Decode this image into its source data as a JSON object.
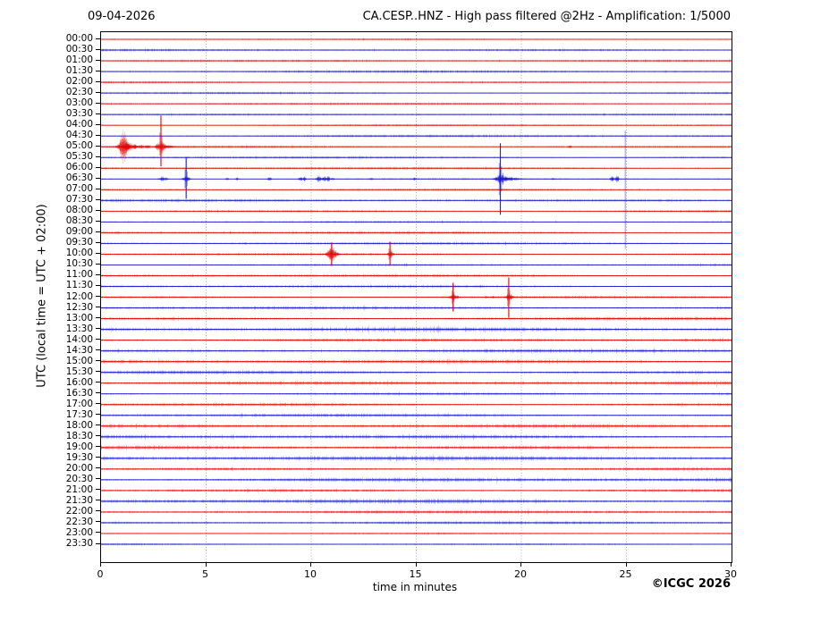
{
  "header": {
    "date": "09-04-2026",
    "station_title": "CA.CESP..HNZ - High pass filtered @2Hz - Amplification: 1/5000"
  },
  "axes": {
    "x_label": "time in minutes",
    "y_label": "UTC (local time = UTC + 02:00)"
  },
  "footer": {
    "copyright": "©ICGC 2026"
  },
  "colors": {
    "red_trace": "#e00000",
    "blue_trace": "#1414cc",
    "grid": "#7a7a7a",
    "frame": "#000000"
  },
  "chart_data": {
    "type": "line",
    "subtype": "helicorder-seismogram",
    "x_range": [
      0,
      30
    ],
    "x_ticks": [
      0,
      5,
      10,
      15,
      20,
      25,
      30
    ],
    "grid_minutes": [
      5,
      10,
      15,
      20,
      25
    ],
    "minutes_per_row": 30,
    "row_color_cycle": [
      "red",
      "blue"
    ],
    "row_labels": [
      "00:00",
      "00:30",
      "01:00",
      "01:30",
      "02:00",
      "02:30",
      "03:00",
      "03:30",
      "04:00",
      "04:30",
      "05:00",
      "05:30",
      "06:00",
      "06:30",
      "07:00",
      "07:30",
      "08:00",
      "08:30",
      "09:00",
      "09:30",
      "10:00",
      "10:30",
      "11:00",
      "11:30",
      "12:00",
      "12:30",
      "13:00",
      "13:30",
      "14:00",
      "14:30",
      "15:00",
      "15:30",
      "16:00",
      "16:30",
      "17:00",
      "17:30",
      "18:00",
      "18:30",
      "19:00",
      "19:30",
      "20:00",
      "20:30",
      "21:00",
      "21:30",
      "22:00",
      "22:30",
      "23:00",
      "23:30"
    ],
    "noise_amp": [
      0.7,
      1.1,
      1.0,
      1.1,
      1.0,
      1.2,
      1.0,
      0.9,
      1.1,
      1.2,
      1.2,
      1.3,
      1.2,
      1.0,
      1.4,
      1.3,
      1.3,
      1.2,
      1.3,
      1.1,
      1.3,
      1.1,
      1.3,
      1.3,
      1.3,
      1.3,
      1.6,
      1.9,
      1.9,
      1.6,
      1.9,
      1.7,
      1.7,
      1.5,
      1.7,
      1.5,
      1.7,
      2.0,
      1.8,
      2.0,
      1.7,
      2.0,
      1.8,
      2.0,
      1.5,
      1.3,
      1.1,
      1.1
    ],
    "events": [
      {
        "row": 10,
        "kind": "burst",
        "t": 1.05,
        "amp": 18,
        "dur": 0.3
      },
      {
        "row": 10,
        "kind": "burst",
        "t": 1.3,
        "amp": 5,
        "dur": 0.5
      },
      {
        "row": 10,
        "kind": "burst",
        "t": 1.62,
        "amp": 3.5,
        "dur": 0.15
      },
      {
        "row": 10,
        "kind": "burst",
        "t": 1.9,
        "amp": 2.5,
        "dur": 0.2
      },
      {
        "row": 10,
        "kind": "burst",
        "t": 2.2,
        "amp": 2,
        "dur": 0.3
      },
      {
        "row": 10,
        "kind": "spike",
        "t": 2.85,
        "up": 35,
        "down": 22
      },
      {
        "row": 10,
        "kind": "burst",
        "t": 2.85,
        "amp": 7,
        "dur": 0.35
      },
      {
        "row": 10,
        "kind": "burst",
        "t": 3.3,
        "amp": 1.8,
        "dur": 0.4
      },
      {
        "row": 10,
        "kind": "burst",
        "t": 22.3,
        "amp": 2.2,
        "dur": 0.12
      },
      {
        "row": 13,
        "kind": "burst",
        "t": 2.95,
        "amp": 3,
        "dur": 0.3
      },
      {
        "row": 13,
        "kind": "spike",
        "t": 4.05,
        "up": 24,
        "down": 22
      },
      {
        "row": 13,
        "kind": "burst",
        "t": 4.05,
        "amp": 4,
        "dur": 0.25
      },
      {
        "row": 13,
        "kind": "burst",
        "t": 6.0,
        "amp": 2.2,
        "dur": 0.12
      },
      {
        "row": 13,
        "kind": "burst",
        "t": 6.45,
        "amp": 1.8,
        "dur": 0.1
      },
      {
        "row": 13,
        "kind": "burst",
        "t": 8.0,
        "amp": 2.2,
        "dur": 0.15
      },
      {
        "row": 13,
        "kind": "burst",
        "t": 9.5,
        "amp": 2.8,
        "dur": 0.15
      },
      {
        "row": 13,
        "kind": "burst",
        "t": 9.68,
        "amp": 2.8,
        "dur": 0.12
      },
      {
        "row": 13,
        "kind": "burst",
        "t": 10.35,
        "amp": 3.8,
        "dur": 0.2
      },
      {
        "row": 13,
        "kind": "burst",
        "t": 10.62,
        "amp": 3.2,
        "dur": 0.16
      },
      {
        "row": 13,
        "kind": "burst",
        "t": 10.8,
        "amp": 3.2,
        "dur": 0.16
      },
      {
        "row": 13,
        "kind": "burst",
        "t": 11.02,
        "amp": 2,
        "dur": 0.1
      },
      {
        "row": 13,
        "kind": "burst",
        "t": 12.85,
        "amp": 1.6,
        "dur": 0.1
      },
      {
        "row": 13,
        "kind": "burst",
        "t": 14.9,
        "amp": 1.8,
        "dur": 0.12
      },
      {
        "row": 13,
        "kind": "spike",
        "t": 19.0,
        "up": 40,
        "down": 40
      },
      {
        "row": 13,
        "kind": "burst",
        "t": 19.05,
        "amp": 7,
        "dur": 0.4
      },
      {
        "row": 13,
        "kind": "burst",
        "t": 19.5,
        "amp": 2.5,
        "dur": 0.6
      },
      {
        "row": 13,
        "kind": "burst",
        "t": 21.5,
        "amp": 1.5,
        "dur": 0.1
      },
      {
        "row": 13,
        "kind": "burst",
        "t": 24.3,
        "amp": 3.5,
        "dur": 0.15
      },
      {
        "row": 13,
        "kind": "burst",
        "t": 24.55,
        "amp": 4.5,
        "dur": 0.13
      },
      {
        "row": 13,
        "kind": "streak",
        "t": 24.95,
        "row_from": 9,
        "row_to": 19
      },
      {
        "row": 20,
        "kind": "burst",
        "t": 11.0,
        "amp": 9,
        "dur": 0.35
      },
      {
        "row": 20,
        "kind": "spike",
        "t": 10.97,
        "up": 13,
        "down": 13
      },
      {
        "row": 20,
        "kind": "spike",
        "t": 13.75,
        "up": 14,
        "down": 13
      },
      {
        "row": 20,
        "kind": "burst",
        "t": 13.78,
        "amp": 4,
        "dur": 0.2
      },
      {
        "row": 24,
        "kind": "spike",
        "t": 16.75,
        "up": 16,
        "down": 16
      },
      {
        "row": 24,
        "kind": "burst",
        "t": 16.78,
        "amp": 5,
        "dur": 0.3
      },
      {
        "row": 24,
        "kind": "burst",
        "t": 18.35,
        "amp": 1.5,
        "dur": 0.1
      },
      {
        "row": 24,
        "kind": "burst",
        "t": 18.65,
        "amp": 1.6,
        "dur": 0.1
      },
      {
        "row": 24,
        "kind": "spike",
        "t": 19.4,
        "up": 22,
        "down": 23
      },
      {
        "row": 24,
        "kind": "burst",
        "t": 19.42,
        "amp": 5,
        "dur": 0.25
      }
    ]
  }
}
